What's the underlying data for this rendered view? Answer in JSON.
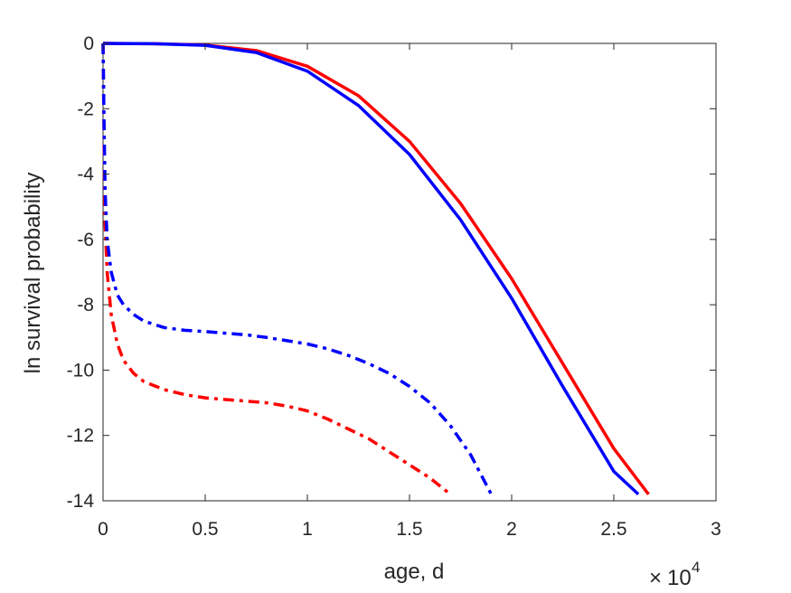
{
  "chart_data": {
    "type": "line",
    "xlabel": "age, d",
    "ylabel": "ln survival probability",
    "x_multiplier_base": "10",
    "x_multiplier_exponent": "4",
    "xlim": [
      0,
      30000
    ],
    "ylim": [
      -14,
      0
    ],
    "x_ticks": [
      0,
      5000,
      10000,
      15000,
      20000,
      25000,
      30000
    ],
    "x_tick_labels": [
      "0",
      "0.5",
      "1",
      "1.5",
      "2",
      "2.5",
      "3"
    ],
    "y_ticks": [
      0,
      -2,
      -4,
      -6,
      -8,
      -10,
      -12,
      -14
    ],
    "y_tick_labels": [
      "0",
      "-2",
      "-4",
      "-6",
      "-8",
      "-10",
      "-12",
      "-14"
    ],
    "grid": false,
    "series": [
      {
        "color": "#ff0000",
        "style": "solid",
        "x": [
          0,
          2500,
          5000,
          7500,
          10000,
          12500,
          15000,
          17500,
          20000,
          22500,
          25000,
          26700
        ],
        "y": [
          0,
          -0.01,
          -0.05,
          -0.22,
          -0.7,
          -1.6,
          -3.0,
          -4.9,
          -7.2,
          -9.8,
          -12.4,
          -13.8
        ]
      },
      {
        "color": "#0000ff",
        "style": "solid",
        "x": [
          0,
          2500,
          5000,
          7500,
          10000,
          12500,
          15000,
          17500,
          20000,
          22500,
          25000,
          26200
        ],
        "y": [
          0,
          -0.01,
          -0.06,
          -0.28,
          -0.85,
          -1.9,
          -3.4,
          -5.4,
          -7.8,
          -10.5,
          -13.1,
          -13.8
        ]
      },
      {
        "color": "#ff0000",
        "style": "dashdot",
        "x": [
          0,
          50,
          100,
          200,
          400,
          700,
          1000,
          1500,
          2000,
          3000,
          4000,
          5000,
          6000,
          7000,
          8000,
          9000,
          10000,
          11000,
          12000,
          13000,
          14000,
          15000,
          16000,
          17000
        ],
        "y": [
          0,
          -3.0,
          -5.5,
          -7.0,
          -8.3,
          -9.2,
          -9.7,
          -10.1,
          -10.35,
          -10.6,
          -10.75,
          -10.85,
          -10.9,
          -10.95,
          -11.0,
          -11.1,
          -11.25,
          -11.5,
          -11.8,
          -12.1,
          -12.5,
          -12.9,
          -13.3,
          -13.8
        ]
      },
      {
        "color": "#0000ff",
        "style": "dashdot",
        "x": [
          0,
          50,
          100,
          200,
          400,
          700,
          1000,
          1500,
          2000,
          3000,
          4000,
          5000,
          6000,
          7000,
          8000,
          9000,
          10000,
          11000,
          12000,
          13000,
          14000,
          15000,
          16000,
          17000,
          18000,
          19000
        ],
        "y": [
          0,
          -2.5,
          -4.5,
          -6.0,
          -7.0,
          -7.7,
          -8.0,
          -8.3,
          -8.5,
          -8.7,
          -8.78,
          -8.82,
          -8.87,
          -8.92,
          -9.0,
          -9.1,
          -9.2,
          -9.35,
          -9.55,
          -9.8,
          -10.1,
          -10.5,
          -11.0,
          -11.7,
          -12.6,
          -13.8
        ]
      }
    ]
  }
}
